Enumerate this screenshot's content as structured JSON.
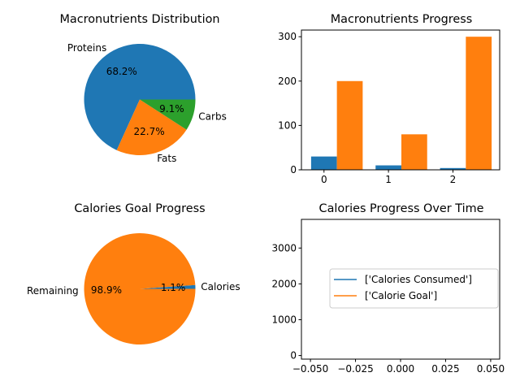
{
  "chart_data": [
    {
      "type": "pie",
      "title": "Macronutrients Distribution",
      "labels": [
        "Proteins",
        "Fats",
        "Carbs"
      ],
      "values": [
        68.2,
        22.7,
        9.1
      ],
      "pct_labels": [
        "68.2%",
        "22.7%",
        "9.1%"
      ],
      "colors": [
        "#1f77b4",
        "#ff7f0e",
        "#2ca02c"
      ]
    },
    {
      "type": "bar",
      "title": "Macronutrients Progress",
      "categories": [
        "0",
        "1",
        "2"
      ],
      "series": [
        {
          "values": [
            30,
            10,
            4
          ],
          "color": "#1f77b4"
        },
        {
          "values": [
            200,
            80,
            300
          ],
          "color": "#ff7f0e"
        }
      ],
      "ylim": [
        0,
        315
      ],
      "yticks": [
        0,
        100,
        200,
        300
      ],
      "xticks": [
        0,
        1,
        2
      ]
    },
    {
      "type": "pie",
      "title": "Calories Goal Progress",
      "labels": [
        "Calories",
        "Remaining"
      ],
      "values": [
        1.1,
        98.9
      ],
      "pct_labels": [
        "1.1%",
        "98.9%"
      ],
      "colors": [
        "#1f77b4",
        "#ff7f0e"
      ]
    },
    {
      "type": "line",
      "title": "Calories Progress Over Time",
      "series": [
        {
          "name": "['Calories Consumed']",
          "x": [],
          "y": [],
          "color": "#1f77b4"
        },
        {
          "name": "['Calorie Goal']",
          "x": [],
          "y": [],
          "color": "#ff7f0e"
        }
      ],
      "xlim": [
        -0.055,
        0.055
      ],
      "ylim": [
        -100,
        3800
      ],
      "xticks": [
        -0.05,
        -0.025,
        0.0,
        0.025,
        0.05
      ],
      "xtick_labels": [
        "−0.050",
        "−0.025",
        "0.000",
        "0.025",
        "0.050"
      ],
      "yticks": [
        0,
        1000,
        2000,
        3000
      ],
      "legend": "center-right"
    }
  ]
}
